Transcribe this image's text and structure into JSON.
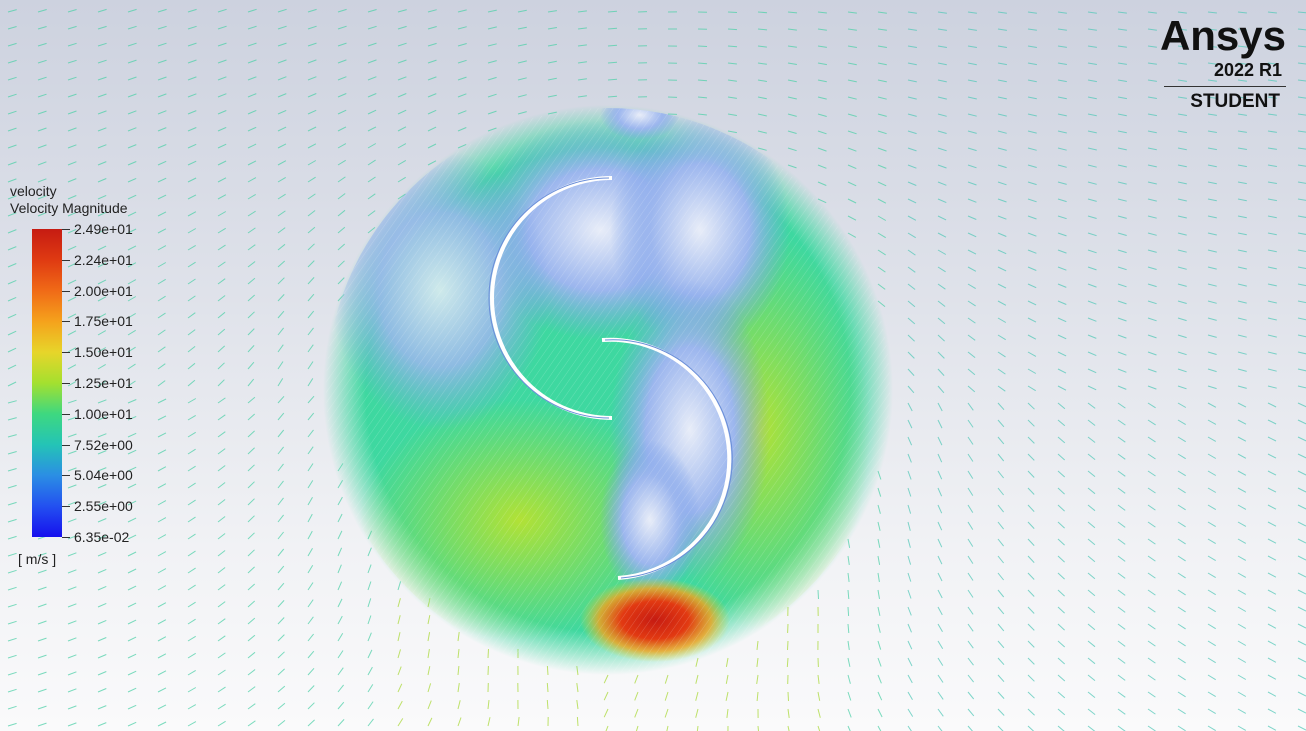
{
  "legend": {
    "title": "velocity",
    "subtitle": "Velocity Magnitude",
    "unit": "[ m/s ]",
    "ticks": [
      "2.49e+01",
      "2.24e+01",
      "2.00e+01",
      "1.75e+01",
      "1.50e+01",
      "1.25e+01",
      "1.00e+01",
      "7.52e+00",
      "5.04e+00",
      "2.55e+00",
      "6.35e-02"
    ],
    "colors": [
      "#c61b12",
      "#df3a12",
      "#f06a17",
      "#f5a21c",
      "#e7d52a",
      "#a4e02f",
      "#3ed880",
      "#24c4b6",
      "#2b8ee4",
      "#2350f0",
      "#1610ee"
    ]
  },
  "logo": {
    "name": "Ansys",
    "version": "2022 R1",
    "edition": "STUDENT"
  },
  "colors": {
    "vector_far": "#4fd0a8",
    "disk_base": "#3ed880",
    "high_velocity": "#c61b12",
    "low_velocity": "#8fb0ee",
    "blade": "#ffffff"
  }
}
